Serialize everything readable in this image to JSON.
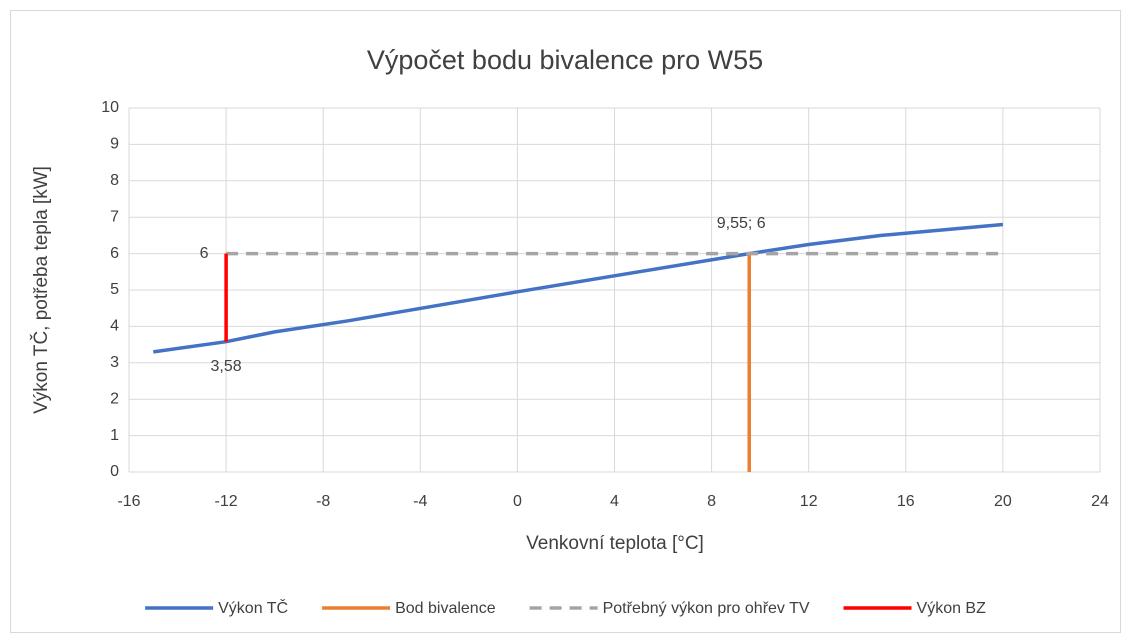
{
  "chart_data": {
    "type": "scatter",
    "title": "Výpočet bodu bivalence pro W55",
    "x_label": "Venkovní teplota [°C]",
    "y_label": "Výkon TČ, potřeba tepla [kW]",
    "xlim": [
      -16,
      24
    ],
    "xticks": [
      -16,
      -12,
      -8,
      -4,
      0,
      4,
      8,
      12,
      16,
      20,
      24
    ],
    "ylim": [
      0,
      10
    ],
    "yticks": [
      0,
      1,
      2,
      3,
      4,
      5,
      6,
      7,
      8,
      9,
      10
    ],
    "grid": true,
    "legend": "bottom",
    "series": [
      {
        "name": "Výkon TČ",
        "color": "#4472c4",
        "dash": false,
        "x": [
          -15,
          -12,
          -10,
          -7,
          -5,
          0,
          5,
          9.55,
          12,
          15,
          20
        ],
        "values": [
          3.3,
          3.58,
          3.85,
          4.15,
          4.38,
          4.95,
          5.5,
          6,
          6.25,
          6.5,
          6.8
        ]
      },
      {
        "name": "Bod bivalence",
        "color": "#ed7d31",
        "dash": false,
        "x": [
          9.55,
          9.55
        ],
        "values": [
          0,
          6
        ],
        "value_labels": [
          null,
          "9,55; 6"
        ]
      },
      {
        "name": "Potřebný výkon pro ohřev TV",
        "color": "#a5a5a5",
        "dash": true,
        "x": [
          -12,
          20
        ],
        "values": [
          6,
          6
        ]
      },
      {
        "name": "Výkon BZ",
        "color": "#ff0000",
        "dash": false,
        "x": [
          -12,
          -12
        ],
        "values": [
          3.58,
          6
        ],
        "value_labels": [
          "3,58",
          "6"
        ]
      }
    ]
  }
}
